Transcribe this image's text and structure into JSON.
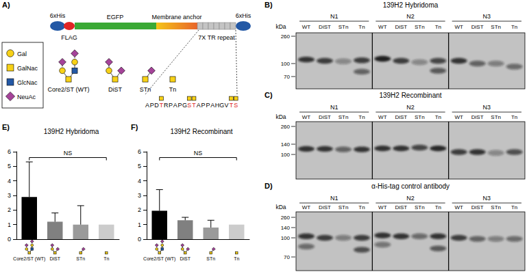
{
  "panel_labels": [
    "A)",
    "B)",
    "C)",
    "D)",
    "E)",
    "F)"
  ],
  "diagram": {
    "legend": [
      {
        "name": "Gal",
        "shape": "circle",
        "color": "#f7d117"
      },
      {
        "name": "GalNac",
        "shape": "square",
        "color": "#f7d117"
      },
      {
        "name": "GlcNac",
        "shape": "square",
        "color": "#2358a5"
      },
      {
        "name": "NeuAc",
        "shape": "diamond",
        "color": "#a54399"
      }
    ],
    "construct": [
      {
        "text": "6xHis",
        "color": "#2358a5"
      },
      {
        "text": "FLAG",
        "color": "#e02424"
      },
      {
        "text": "EGFP",
        "color": "#3aa935"
      },
      {
        "text": "Membrane anchor",
        "color": "#e8642a"
      },
      {
        "text": "7X TR repeat",
        "color": "#c4c4c4"
      },
      {
        "text": "6xHis",
        "color": "#2358a5"
      }
    ],
    "glycans": [
      "Core2/ST (WT)",
      "DiST",
      "STn",
      "Tn"
    ],
    "sequence": [
      {
        "text": "APD",
        "glycosylated": false
      },
      {
        "text": "T",
        "glycosylated": true
      },
      {
        "text": "RPAPG",
        "glycosylated": false
      },
      {
        "text": "ST",
        "glycosylated": true
      },
      {
        "text": "APPAHGV",
        "glycosylated": false
      },
      {
        "text": "TS",
        "glycosylated": true
      }
    ]
  },
  "blots": [
    {
      "title": "139H2 Hybridoma",
      "unit": "kDa",
      "ticks": [
        260,
        100,
        70
      ],
      "lanes": [
        "WT",
        "DiST",
        "STn",
        "Tn"
      ],
      "groups": [
        {
          "name": "N1",
          "bands": [
            [
              [
                115,
                0.8
              ]
            ],
            [
              [
                110,
                0.75
              ]
            ],
            [
              [
                108,
                0.35
              ]
            ],
            [
              [
                112,
                0.75
              ],
              [
                80,
                0.55
              ]
            ]
          ]
        },
        {
          "name": "N2",
          "bands": [
            [
              [
                118,
                0.95
              ]
            ],
            [
              [
                110,
                0.75
              ]
            ],
            [
              [
                105,
                0.35
              ]
            ],
            [
              [
                110,
                0.7
              ],
              [
                82,
                0.6
              ]
            ]
          ]
        },
        {
          "name": "N3",
          "bands": [
            [
              [
                110,
                0.8
              ]
            ],
            [
              [
                100,
                0.55
              ]
            ],
            [
              [
                100,
                0.4
              ]
            ],
            [
              [
                92,
                0.5
              ]
            ]
          ]
        }
      ]
    },
    {
      "title": "139H2 Recombinant",
      "unit": "kDa",
      "ticks": [
        260,
        140,
        100
      ],
      "lanes": [
        "WT",
        "DiST",
        "STn",
        "Tn"
      ],
      "groups": [
        {
          "name": "N1",
          "bands": [
            [
              [
                120,
                0.85
              ]
            ],
            [
              [
                120,
                0.8
              ]
            ],
            [
              [
                118,
                0.55
              ]
            ],
            [
              [
                118,
                0.8
              ]
            ]
          ]
        },
        {
          "name": "N2",
          "bands": [
            [
              [
                122,
                0.85
              ]
            ],
            [
              [
                122,
                0.85
              ]
            ],
            [
              [
                125,
                0.7
              ]
            ],
            [
              [
                122,
                0.9
              ]
            ]
          ]
        },
        {
          "name": "N3",
          "bands": [
            [
              [
                108,
                0.75
              ]
            ],
            [
              [
                108,
                0.8
              ]
            ],
            [
              [
                105,
                0.35
              ]
            ],
            [
              [
                108,
                0.65
              ]
            ]
          ]
        }
      ]
    },
    {
      "title": "α-His-tag control antibody",
      "unit": "kDa",
      "ticks": [
        260,
        140,
        100,
        70
      ],
      "lanes": [
        "WT",
        "DiST",
        "STn",
        "Tn"
      ],
      "groups": [
        {
          "name": "N1",
          "bands": [
            [
              [
                105,
                0.8
              ],
              [
                85,
                0.5
              ]
            ],
            [
              [
                100,
                0.75
              ]
            ],
            [
              [
                100,
                0.4
              ]
            ],
            [
              [
                100,
                0.75
              ],
              [
                80,
                0.65
              ]
            ]
          ]
        },
        {
          "name": "N2",
          "bands": [
            [
              [
                108,
                0.85
              ],
              [
                88,
                0.45
              ]
            ],
            [
              [
                105,
                0.8
              ]
            ],
            [
              [
                105,
                0.5
              ]
            ],
            [
              [
                105,
                0.8
              ],
              [
                82,
                0.6
              ]
            ]
          ]
        },
        {
          "name": "N3",
          "bands": [
            [
              [
                100,
                0.75
              ]
            ],
            [
              [
                98,
                0.55
              ]
            ],
            [
              [
                98,
                0.4
              ]
            ],
            [
              [
                98,
                0.5
              ]
            ]
          ]
        }
      ]
    }
  ],
  "chart_data": [
    {
      "type": "bar",
      "title": "139H2 Hybridoma",
      "categories": [
        "Core2/ST (WT)",
        "DiST",
        "STn",
        "Tn"
      ],
      "values": [
        2.9,
        1.2,
        1.0,
        1.0
      ],
      "errors": [
        2.4,
        0.6,
        1.3,
        null
      ],
      "colors": [
        "#000000",
        "#808080",
        "#9a9a9a",
        "#cccccc"
      ],
      "ylim": [
        0,
        6
      ],
      "yticks": [
        0,
        1,
        2,
        3,
        4,
        5,
        6
      ],
      "grid": false,
      "annotations": [
        {
          "text": "NS",
          "from": "Core2/ST (WT)",
          "to": "Tn",
          "y": 5.6
        }
      ]
    },
    {
      "type": "bar",
      "title": "139H2 Recombinant",
      "categories": [
        "Core2/ST (WT)",
        "DiST",
        "STn",
        "Tn"
      ],
      "values": [
        1.95,
        1.3,
        0.8,
        1.0
      ],
      "errors": [
        1.45,
        0.2,
        0.5,
        null
      ],
      "colors": [
        "#000000",
        "#808080",
        "#9a9a9a",
        "#cccccc"
      ],
      "ylim": [
        0,
        6
      ],
      "yticks": [
        0,
        1,
        2,
        3,
        4,
        5,
        6
      ],
      "grid": false,
      "annotations": [
        {
          "text": "NS",
          "from": "Core2/ST (WT)",
          "to": "Tn",
          "y": 5.6
        }
      ]
    }
  ]
}
